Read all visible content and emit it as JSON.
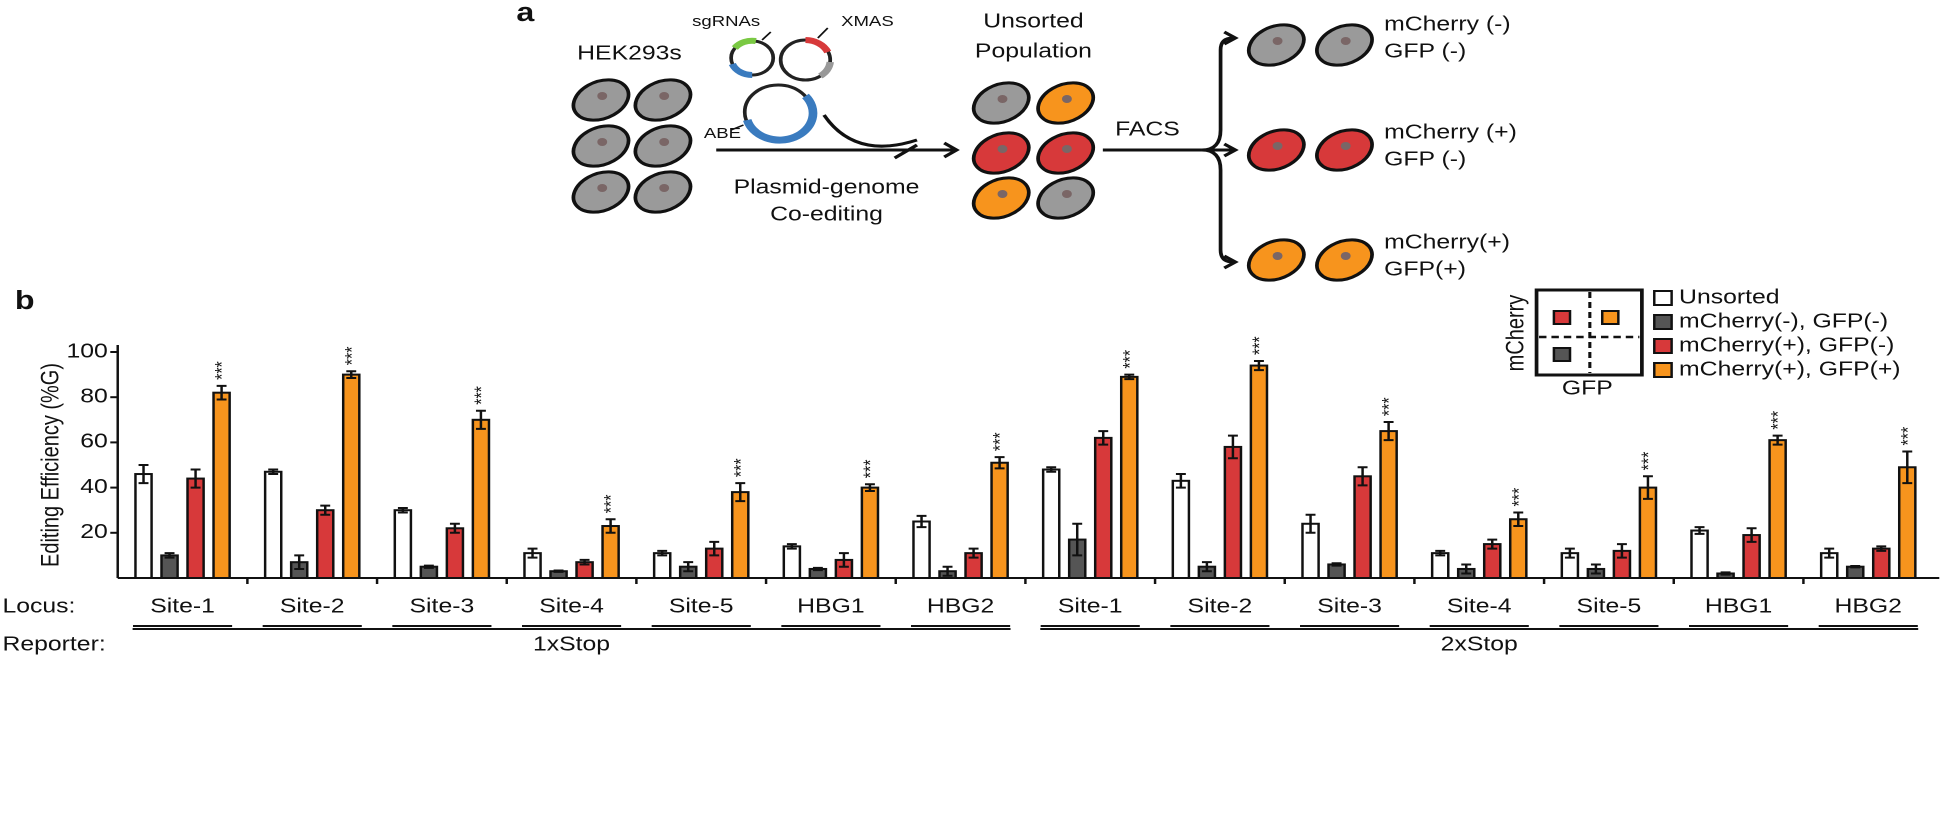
{
  "diagram": {
    "panel_label": "a",
    "cells_label": "HEK293s",
    "sgrna_label": "sgRNAs",
    "xmas_label": "XMAS",
    "abe_label": "ABE",
    "unsorted_line1": "Unsorted",
    "unsorted_line2": "Population",
    "coediting_line1": "Plasmid-genome",
    "coediting_line2": "Co-editing",
    "facs_label": "FACS",
    "outputs": [
      [
        "mCherry (-)",
        "GFP (-)"
      ],
      [
        "mCherry (+)",
        "GFP (-)"
      ],
      [
        "mCherry(+)",
        "GFP(+)"
      ]
    ]
  },
  "chart_data": {
    "type": "bar",
    "panel_label": "b",
    "y_label": "Editing Efficiency (%G)",
    "locus_heading": "Locus:",
    "reporter_heading": "Reporter:",
    "categories": [
      "Site-1",
      "Site-2",
      "Site-3",
      "Site-4",
      "Site-5",
      "HBG1",
      "HBG2",
      "Site-1",
      "Site-2",
      "Site-3",
      "Site-4",
      "Site-5",
      "HBG1",
      "HBG2"
    ],
    "groups": [
      {
        "name": "1xStop",
        "size": 7
      },
      {
        "name": "2xStop",
        "size": 7
      }
    ],
    "series": [
      {
        "name": "Unsorted",
        "color": "#ffffff",
        "values": [
          46,
          47,
          30,
          11,
          11,
          14,
          25,
          48,
          43,
          24,
          11,
          11,
          21,
          11
        ],
        "errors": [
          4,
          1,
          1,
          2,
          1,
          1,
          2.5,
          1,
          3,
          4,
          1,
          2,
          1.5,
          2
        ]
      },
      {
        "name": "mCherry(-), GFP(-)",
        "color": "#555555",
        "values": [
          10,
          7,
          5,
          3,
          5,
          4,
          3,
          17,
          5,
          6,
          4,
          4,
          2,
          5
        ],
        "errors": [
          1,
          3,
          0.5,
          0.3,
          2,
          0.5,
          2,
          7,
          2,
          0.5,
          2,
          2,
          0.5,
          0.3
        ]
      },
      {
        "name": "mCherry(+), GFP(-)",
        "color": "#d7393a",
        "values": [
          44,
          30,
          22,
          7,
          13,
          8,
          11,
          62,
          58,
          45,
          15,
          12,
          19,
          13
        ],
        "errors": [
          4,
          2,
          2,
          1,
          3,
          3,
          2,
          3,
          5,
          4,
          2,
          3,
          3,
          1
        ]
      },
      {
        "name": "mCherry(+), GFP(+)",
        "color": "#f7941d",
        "values": [
          82,
          90,
          70,
          23,
          38,
          40,
          51,
          89,
          94,
          65,
          26,
          40,
          61,
          49
        ],
        "errors": [
          3,
          1.5,
          4,
          3,
          4,
          1.5,
          2.5,
          1,
          2,
          4,
          3,
          5,
          2,
          7
        ]
      }
    ],
    "annotations": [
      "***",
      "***",
      "***",
      "***",
      "***",
      "***",
      "***",
      "***",
      "***",
      "***",
      "***",
      "***",
      "***",
      "***"
    ],
    "ylim": [
      0,
      100
    ],
    "yticks": [
      20,
      40,
      60,
      80,
      100
    ],
    "grid": false,
    "inset": {
      "y_label": "mCherry",
      "x_label": "GFP"
    }
  }
}
